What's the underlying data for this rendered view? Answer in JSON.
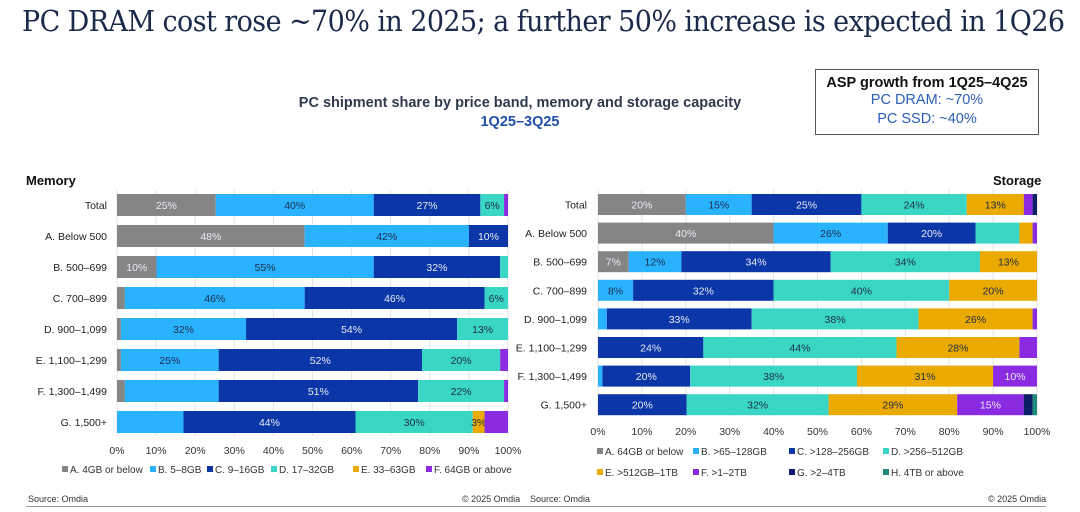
{
  "title": "PC DRAM cost rose ~70% in 2025; a further 50% increase is expected in 1Q26",
  "subtitle": "PC shipment share by price band, memory and storage capacity",
  "period": "1Q25–3Q25",
  "asp_box": {
    "heading": "ASP growth from 1Q25–4Q25",
    "line1": "PC DRAM: ~70%",
    "line2": "PC SSD: ~40%"
  },
  "footer": {
    "left_source": "Source: Omdia",
    "left_copyright": "© 2025 Omdia",
    "right_source": "Source: Omdia",
    "right_copyright": "© 2025 Omdia"
  },
  "chart_data": [
    {
      "type": "bar",
      "orientation": "horizontal-stacked-100",
      "title": "Memory",
      "categories": [
        "Total",
        "A. Below 500",
        "B. 500–699",
        "C. 700–899",
        "D. 900–1,099",
        "E. 1,100–1,299",
        "F. 1,300–1,499",
        "G. 1,500+"
      ],
      "xlim": [
        0,
        100
      ],
      "xticks": [
        "0%",
        "10%",
        "20%",
        "30%",
        "40%",
        "50%",
        "60%",
        "70%",
        "80%",
        "90%",
        "100%"
      ],
      "grid": true,
      "legend_position": "bottom",
      "series": [
        {
          "name": "A. 4GB or below",
          "color": "#858585",
          "values": [
            25,
            48,
            10,
            2,
            1,
            1,
            2,
            0
          ],
          "labels": [
            "25%",
            "48%",
            "10%",
            "",
            "",
            "",
            "",
            ""
          ]
        },
        {
          "name": "B. 5–8GB",
          "color": "#29b3ff",
          "values": [
            40,
            42,
            55,
            46,
            32,
            25,
            24,
            17
          ],
          "labels": [
            "40%",
            "42%",
            "55%",
            "46%",
            "32%",
            "25%",
            "",
            ""
          ]
        },
        {
          "name": "C. 9–16GB",
          "color": "#0a36a8",
          "values": [
            27,
            10,
            32,
            46,
            54,
            52,
            51,
            44
          ],
          "labels": [
            "27%",
            "10%",
            "32%",
            "46%",
            "54%",
            "52%",
            "51%",
            "44%"
          ]
        },
        {
          "name": "D. 17–32GB",
          "color": "#3ad6c5",
          "values": [
            6,
            0,
            2,
            6,
            13,
            20,
            22,
            30
          ],
          "labels": [
            "6%",
            "",
            "",
            "6%",
            "13%",
            "20%",
            "22%",
            "30%"
          ]
        },
        {
          "name": "E. 33–63GB",
          "color": "#eaaa00",
          "values": [
            0,
            0,
            0,
            0,
            0,
            0,
            0,
            3
          ],
          "labels": [
            "",
            "",
            "",
            "",
            "",
            "",
            "",
            "3%"
          ]
        },
        {
          "name": "F. 64GB or above",
          "color": "#8a2be2",
          "values": [
            1,
            0,
            0,
            0,
            0,
            2,
            1,
            6
          ],
          "labels": [
            "",
            "",
            "",
            "",
            "",
            "",
            "",
            ""
          ]
        }
      ]
    },
    {
      "type": "bar",
      "orientation": "horizontal-stacked-100",
      "title": "Storage",
      "categories": [
        "Total",
        "A. Below 500",
        "B. 500–699",
        "C. 700–899",
        "D. 900–1,099",
        "E. 1,100–1,299",
        "F. 1,300–1,499",
        "G. 1,500+"
      ],
      "xlim": [
        0,
        100
      ],
      "xticks": [
        "0%",
        "10%",
        "20%",
        "30%",
        "40%",
        "50%",
        "60%",
        "70%",
        "80%",
        "90%",
        "100%"
      ],
      "grid": true,
      "legend_position": "bottom",
      "series": [
        {
          "name": "A. 64GB or below",
          "color": "#858585",
          "values": [
            20,
            40,
            7,
            0,
            0,
            0,
            0,
            0
          ],
          "labels": [
            "20%",
            "40%",
            "7%",
            "",
            "",
            "",
            "",
            ""
          ]
        },
        {
          "name": "B. >65–128GB",
          "color": "#29b3ff",
          "values": [
            15,
            26,
            12,
            8,
            2,
            0,
            1,
            0
          ],
          "labels": [
            "15%",
            "26%",
            "12%",
            "8%",
            "",
            "",
            "",
            ""
          ]
        },
        {
          "name": "C. >128–256GB",
          "color": "#0a36a8",
          "values": [
            25,
            20,
            34,
            32,
            33,
            24,
            20,
            20
          ],
          "labels": [
            "25%",
            "20%",
            "34%",
            "32%",
            "33%",
            "24%",
            "20%",
            "20%"
          ]
        },
        {
          "name": "D. >256–512GB",
          "color": "#3ad6c5",
          "values": [
            24,
            10,
            34,
            40,
            38,
            44,
            38,
            32
          ],
          "labels": [
            "24%",
            "",
            "34%",
            "40%",
            "38%",
            "44%",
            "38%",
            "32%"
          ]
        },
        {
          "name": "E. >512GB–1TB",
          "color": "#eaaa00",
          "values": [
            13,
            3,
            13,
            20,
            26,
            28,
            31,
            29
          ],
          "labels": [
            "13%",
            "",
            "13%",
            "20%",
            "26%",
            "28%",
            "31%",
            "29%"
          ]
        },
        {
          "name": "F. >1–2TB",
          "color": "#8a2be2",
          "values": [
            2,
            1,
            0,
            0,
            1,
            4,
            10,
            15
          ],
          "labels": [
            "",
            "",
            "",
            "",
            "",
            "",
            "10%",
            "15%"
          ]
        },
        {
          "name": "G. >2–4TB",
          "color": "#0b1f66",
          "values": [
            1,
            0,
            0,
            0,
            0,
            0,
            0,
            2
          ],
          "labels": [
            "",
            "",
            "",
            "",
            "",
            "",
            "",
            ""
          ]
        },
        {
          "name": "H. 4TB or above",
          "color": "#1f8a7a",
          "values": [
            0,
            0,
            0,
            0,
            0,
            0,
            0,
            1
          ],
          "labels": [
            "",
            "",
            "",
            "",
            "",
            "",
            "",
            ""
          ]
        }
      ]
    }
  ]
}
